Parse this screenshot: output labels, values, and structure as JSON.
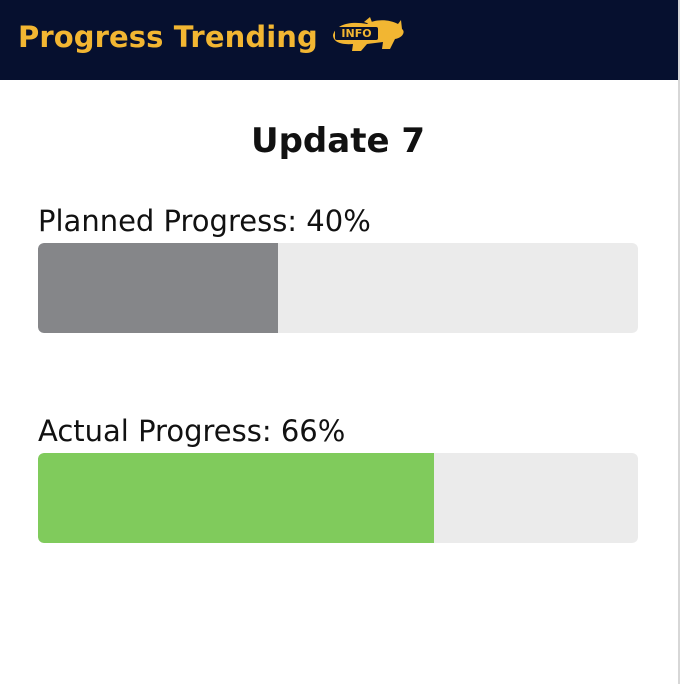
{
  "header": {
    "title": "Progress Trending",
    "icon": {
      "name": "rhino-info-icon",
      "label": "INFO"
    },
    "background_color": "#06102f",
    "title_color": "#f2b632"
  },
  "update": {
    "title": "Update 7"
  },
  "progress": {
    "planned": {
      "label": "Planned Progress: 40%",
      "label_prefix": "Planned Progress: ",
      "value_text": "40%",
      "value": 40,
      "fill_color": "#858689"
    },
    "actual": {
      "label": "Actual Progress: 66%",
      "label_prefix": "Actual Progress: ",
      "value_text": "66%",
      "value": 66,
      "fill_color": "#80cb5c"
    },
    "track_color": "#ebebeb"
  }
}
